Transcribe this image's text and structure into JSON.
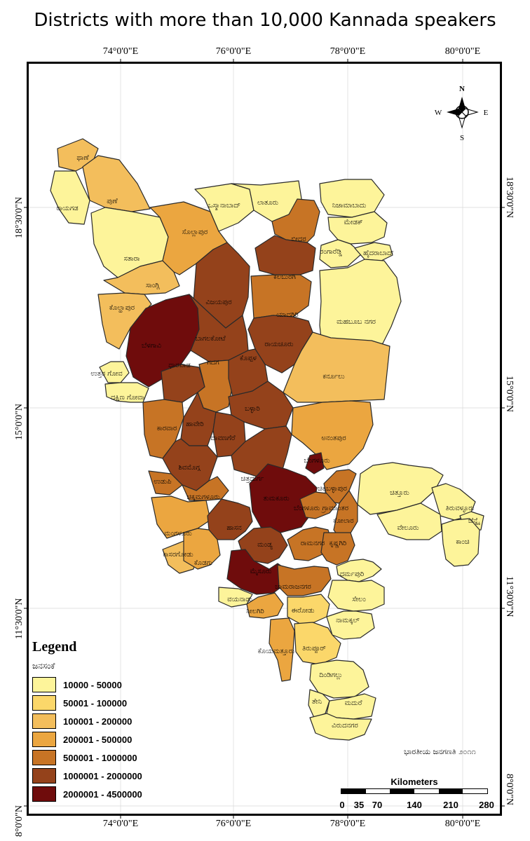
{
  "title": "Districts with more than 10,000 Kannada speakers",
  "axes": {
    "top": [
      "74°0'0\"E",
      "76°0'0\"E",
      "78°0'0\"E",
      "80°0'0\"E"
    ],
    "bottom": [
      "74°0'0\"E",
      "76°0'0\"E",
      "78°0'0\"E",
      "80°0'0\"E"
    ],
    "left": [
      "18°30'0\"N",
      "15°0'0\"N",
      "11°30'0\"N",
      "8°0'0\"N"
    ],
    "right": [
      "18°30'0\"N",
      "15°0'0\"N",
      "11°30'0\"N",
      "8°0'0\"N"
    ]
  },
  "compass": {
    "n": "N",
    "s": "S",
    "e": "E",
    "w": "W"
  },
  "legend": {
    "title": "Legend",
    "subtitle": "ಜನಸಂಕೆ",
    "classes": [
      {
        "label": "10000 - 50000",
        "color": "#fdf49a"
      },
      {
        "label": "50001 - 100000",
        "color": "#fbd76a"
      },
      {
        "label": "100001 - 200000",
        "color": "#f3be5c"
      },
      {
        "label": "200001 - 500000",
        "color": "#eba640"
      },
      {
        "label": "500001 - 1000000",
        "color": "#c77425"
      },
      {
        "label": "1000001 - 2000000",
        "color": "#94421b"
      },
      {
        "label": "2000001 - 4500000",
        "color": "#6f0c0c"
      }
    ]
  },
  "districts": [
    {
      "name": "ಥಾಣೆ",
      "cls": 2
    },
    {
      "name": "ಪುಣೆ",
      "cls": 2
    },
    {
      "name": "ರಾಯಗಡ",
      "cls": 0
    },
    {
      "name": "ಸತಾರಾ",
      "cls": 0
    },
    {
      "name": "ಸಾಂಗ್ಲಿ",
      "cls": 2
    },
    {
      "name": "ಕೊಲ್ಹಾಪುರ",
      "cls": 2
    },
    {
      "name": "ಸೊಲ್ಲಾಪುರ",
      "cls": 3
    },
    {
      "name": "ಒಸ್ಮಾನಾಬಾದ್",
      "cls": 0
    },
    {
      "name": "ಲಾತೂರು",
      "cls": 0
    },
    {
      "name": "ಬೀದರ",
      "cls": 4
    },
    {
      "name": "ನಿಜಾಮಾಬಾದು",
      "cls": 0
    },
    {
      "name": "ಮೇಡಕ್",
      "cls": 0
    },
    {
      "name": "ರಂಗಾರೆಡ್ಡಿ",
      "cls": 0
    },
    {
      "name": "ಹೈದರಾಬಾದ್",
      "cls": 0
    },
    {
      "name": "ಕಲಬುರಗಿ",
      "cls": 5
    },
    {
      "name": "ವಿಜಯಪುರ",
      "cls": 5
    },
    {
      "name": "ಯಾದಗಿರಿ",
      "cls": 4
    },
    {
      "name": "ಮಹಬೂಬ ನಗರ",
      "cls": 0
    },
    {
      "name": "ಬೆಳಗಾವಿ",
      "cls": 6
    },
    {
      "name": "ಬಾಗಲಕೋಟೆ",
      "cls": 5
    },
    {
      "name": "ರಾಯಚೂರು",
      "cls": 5
    },
    {
      "name": "ಉತ್ತರ ಗೋವ",
      "cls": 0
    },
    {
      "name": "ದಕ್ಷಿಣ ಗೋವಾ",
      "cls": 0
    },
    {
      "name": "ಧಾರವಾಡ",
      "cls": 5
    },
    {
      "name": "ಗದಗ",
      "cls": 4
    },
    {
      "name": "ಕೊಪ್ಪಳ",
      "cls": 5
    },
    {
      "name": "ಕರ್ನೂಲು",
      "cls": 2
    },
    {
      "name": "ಬಳ್ಳಾರಿ",
      "cls": 5
    },
    {
      "name": "ಕಾರವಾರ",
      "cls": 4
    },
    {
      "name": "ಹಾವೇರಿ",
      "cls": 5
    },
    {
      "name": "ದಾವಣಗೆರೆ",
      "cls": 5
    },
    {
      "name": "ಅನಂತಪುರ",
      "cls": 3
    },
    {
      "name": "ಶಿವಮೊಗ್ಗ",
      "cls": 5
    },
    {
      "name": "ಚಿತ್ರದುರ್ಗ",
      "cls": 5
    },
    {
      "name": "ಬೆಂಗಳೂರು",
      "cls": 6
    },
    {
      "name": "ಉಡುಪಿ",
      "cls": 4
    },
    {
      "name": "ಚಿಕ್ಕಮಗಳೂರು",
      "cls": 4
    },
    {
      "name": "ತುಮಕೂರು",
      "cls": 6
    },
    {
      "name": "ಚಿಕ್ಕಬಳ್ಳಾಪುರ",
      "cls": 4
    },
    {
      "name": "ಚಿತ್ತೂರು",
      "cls": 0
    },
    {
      "name": "ಬೆಂಗಳೂರು ಗ್ರಾಮಾಂತರ",
      "cls": 4
    },
    {
      "name": "ಕೋಲಾರ",
      "cls": 4
    },
    {
      "name": "ತಿರುವಳ್ಳೂರು",
      "cls": 0
    },
    {
      "name": "ಚೆನ್ನೈ",
      "cls": 0
    },
    {
      "name": "ವೇಲೂರು",
      "cls": 0
    },
    {
      "name": "ಕಾಂಚಿ",
      "cls": 0
    },
    {
      "name": "ಮಂಗಳೂರು",
      "cls": 3
    },
    {
      "name": "ಹಾಸನ",
      "cls": 5
    },
    {
      "name": "ಮಂಡ್ಯ",
      "cls": 5
    },
    {
      "name": "ರಾಮನಗರ",
      "cls": 4
    },
    {
      "name": "ಕೃಷ್ಣಗಿರಿ",
      "cls": 4
    },
    {
      "name": "ಕಾಸರಗೋಡು",
      "cls": 2
    },
    {
      "name": "ಕೊಡಗು",
      "cls": 3
    },
    {
      "name": "ಧರ್ಮಪುರಿ",
      "cls": 0
    },
    {
      "name": "ಮೈಸೂರು",
      "cls": 6
    },
    {
      "name": "ಚಾಮರಾಜನಗರ",
      "cls": 4
    },
    {
      "name": "ವಯನಾಡು",
      "cls": 0
    },
    {
      "name": "ಸೇಲಂ",
      "cls": 0
    },
    {
      "name": "ನೀಲಗಿರಿ",
      "cls": 3
    },
    {
      "name": "ಈರೋಡು",
      "cls": 1
    },
    {
      "name": "ನಾಮಕ್ಕಲ್",
      "cls": 0
    },
    {
      "name": "ಕೊಯಮತ್ತೂರು",
      "cls": 3
    },
    {
      "name": "ತಿರುಪ್ಪೂರ್",
      "cls": 1
    },
    {
      "name": "ದಿಂಡಿಗಲ್ಲು",
      "cls": 0
    },
    {
      "name": "ತೇನಿ",
      "cls": 0
    },
    {
      "name": "ಮದುರೆ",
      "cls": 0
    },
    {
      "name": "ವಿರುದನಗರ",
      "cls": 0
    }
  ],
  "census_note": "ಭಾರತೀಯ ಜನಗಣತಿ ೨೦೧೧",
  "scale": {
    "title": "Kilometers",
    "ticks": [
      "0",
      "35",
      "70",
      "140",
      "210",
      "280"
    ]
  }
}
